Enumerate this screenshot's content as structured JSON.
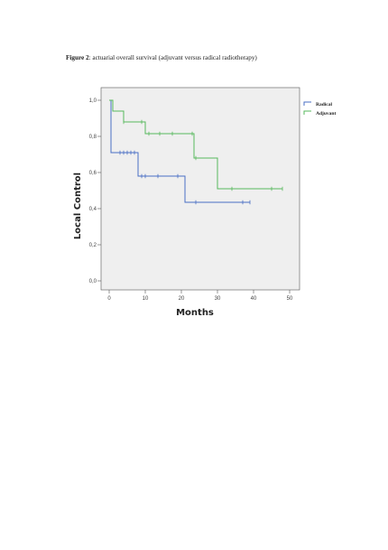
{
  "caption": {
    "label": "Figure 2",
    "text": ": actuarial overall survival (adjuvant versus radical radiotherapy)"
  },
  "chart_data": {
    "type": "line",
    "step": true,
    "xlabel": "Months",
    "ylabel": "Local Control",
    "xlim": [
      0,
      50
    ],
    "ylim": [
      0.0,
      1.0
    ],
    "x_ticks": [
      "0",
      "10",
      "20",
      "30",
      "40",
      "50"
    ],
    "y_ticks": [
      "0,0",
      "0,2",
      "0,4",
      "0,6",
      "0,8",
      "1,0"
    ],
    "x_tick_values": [
      0,
      10,
      20,
      30,
      40,
      50
    ],
    "y_tick_values": [
      0.0,
      0.2,
      0.4,
      0.6,
      0.8,
      1.0
    ],
    "grid": false,
    "legend": "top-right",
    "plot_background": "#efefef",
    "series": [
      {
        "name": "Radical",
        "color": "#4a6fc4",
        "steps": [
          [
            0,
            1.0
          ],
          [
            0.5,
            0.71
          ],
          [
            8,
            0.58
          ],
          [
            21,
            0.435
          ],
          [
            39,
            0.435
          ]
        ],
        "censored": [
          [
            3,
            0.71
          ],
          [
            4,
            0.71
          ],
          [
            5,
            0.71
          ],
          [
            6,
            0.71
          ],
          [
            7,
            0.71
          ],
          [
            9,
            0.58
          ],
          [
            10,
            0.58
          ],
          [
            13.5,
            0.58
          ],
          [
            19,
            0.58
          ],
          [
            24,
            0.435
          ],
          [
            37,
            0.435
          ],
          [
            39,
            0.435
          ]
        ]
      },
      {
        "name": "Adjuvant",
        "color": "#57b85c",
        "steps": [
          [
            0,
            1.0
          ],
          [
            1,
            0.94
          ],
          [
            4,
            0.88
          ],
          [
            10,
            0.815
          ],
          [
            23.5,
            0.68
          ],
          [
            30,
            0.51
          ],
          [
            48,
            0.51
          ]
        ],
        "censored": [
          [
            4,
            0.88
          ],
          [
            9,
            0.88
          ],
          [
            11,
            0.815
          ],
          [
            14,
            0.815
          ],
          [
            17.5,
            0.815
          ],
          [
            23,
            0.815
          ],
          [
            24,
            0.68
          ],
          [
            34,
            0.51
          ],
          [
            45,
            0.51
          ],
          [
            48,
            0.51
          ]
        ]
      }
    ]
  }
}
